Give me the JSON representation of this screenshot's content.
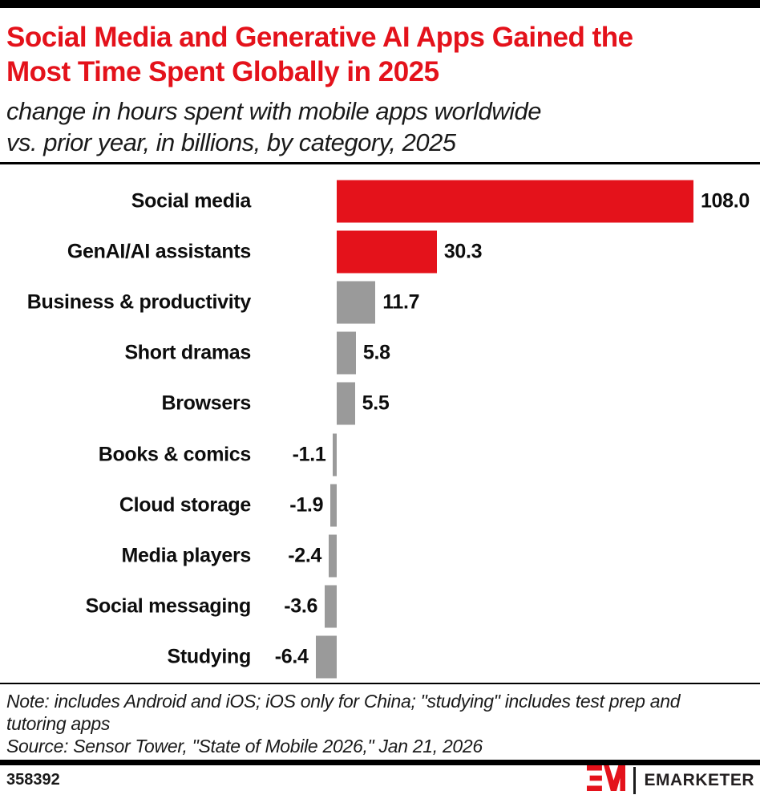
{
  "header": {
    "title_lines": [
      "Social Media and Generative AI Apps Gained the",
      "Most Time Spent Globally in 2025"
    ],
    "title_color": "#E4121B",
    "subtitle_lines": [
      "change in hours spent with mobile apps worldwide",
      "vs. prior year, in billions, by category, 2025"
    ]
  },
  "chart_data": {
    "type": "bar",
    "orientation": "horizontal",
    "title": "Social Media and Generative AI Apps Gained the Most Time Spent Globally in 2025",
    "subtitle": "change in hours spent with mobile apps worldwide vs. prior year, in billions, by category, 2025",
    "xlabel": "",
    "ylabel": "",
    "unit": "billions of hours",
    "xlim": [
      -10,
      115
    ],
    "grid": false,
    "legend": false,
    "categories": [
      "Social media",
      "GenAI/AI assistants",
      "Business & productivity",
      "Short dramas",
      "Browsers",
      "Books & comics",
      "Cloud storage",
      "Media players",
      "Social messaging",
      "Studying"
    ],
    "values": [
      108.0,
      30.3,
      11.7,
      5.8,
      5.5,
      -1.1,
      -1.9,
      -2.4,
      -3.6,
      -6.4
    ],
    "value_labels": [
      "108.0",
      "30.3",
      "11.7",
      "5.8",
      "5.5",
      "-1.1",
      "-1.9",
      "-2.4",
      "-3.6",
      "-6.4"
    ],
    "bar_colors": [
      "#E4121B",
      "#E4121B",
      "#9A9A9A",
      "#9A9A9A",
      "#9A9A9A",
      "#9A9A9A",
      "#9A9A9A",
      "#9A9A9A",
      "#9A9A9A",
      "#9A9A9A"
    ],
    "highlight_color": "#E4121B",
    "default_color": "#9A9A9A"
  },
  "footnotes": {
    "note_lines": [
      "Note: includes Android and iOS; iOS only for China; \"studying\" includes test prep and",
      "tutoring apps"
    ],
    "source_line": "Source: Sensor Tower, \"State of Mobile 2026,\" Jan 21, 2026"
  },
  "footer": {
    "chart_id": "358392",
    "brand": "EMARKETER",
    "logo_mark": "em-monogram-icon",
    "brand_color": "#E4121B"
  }
}
